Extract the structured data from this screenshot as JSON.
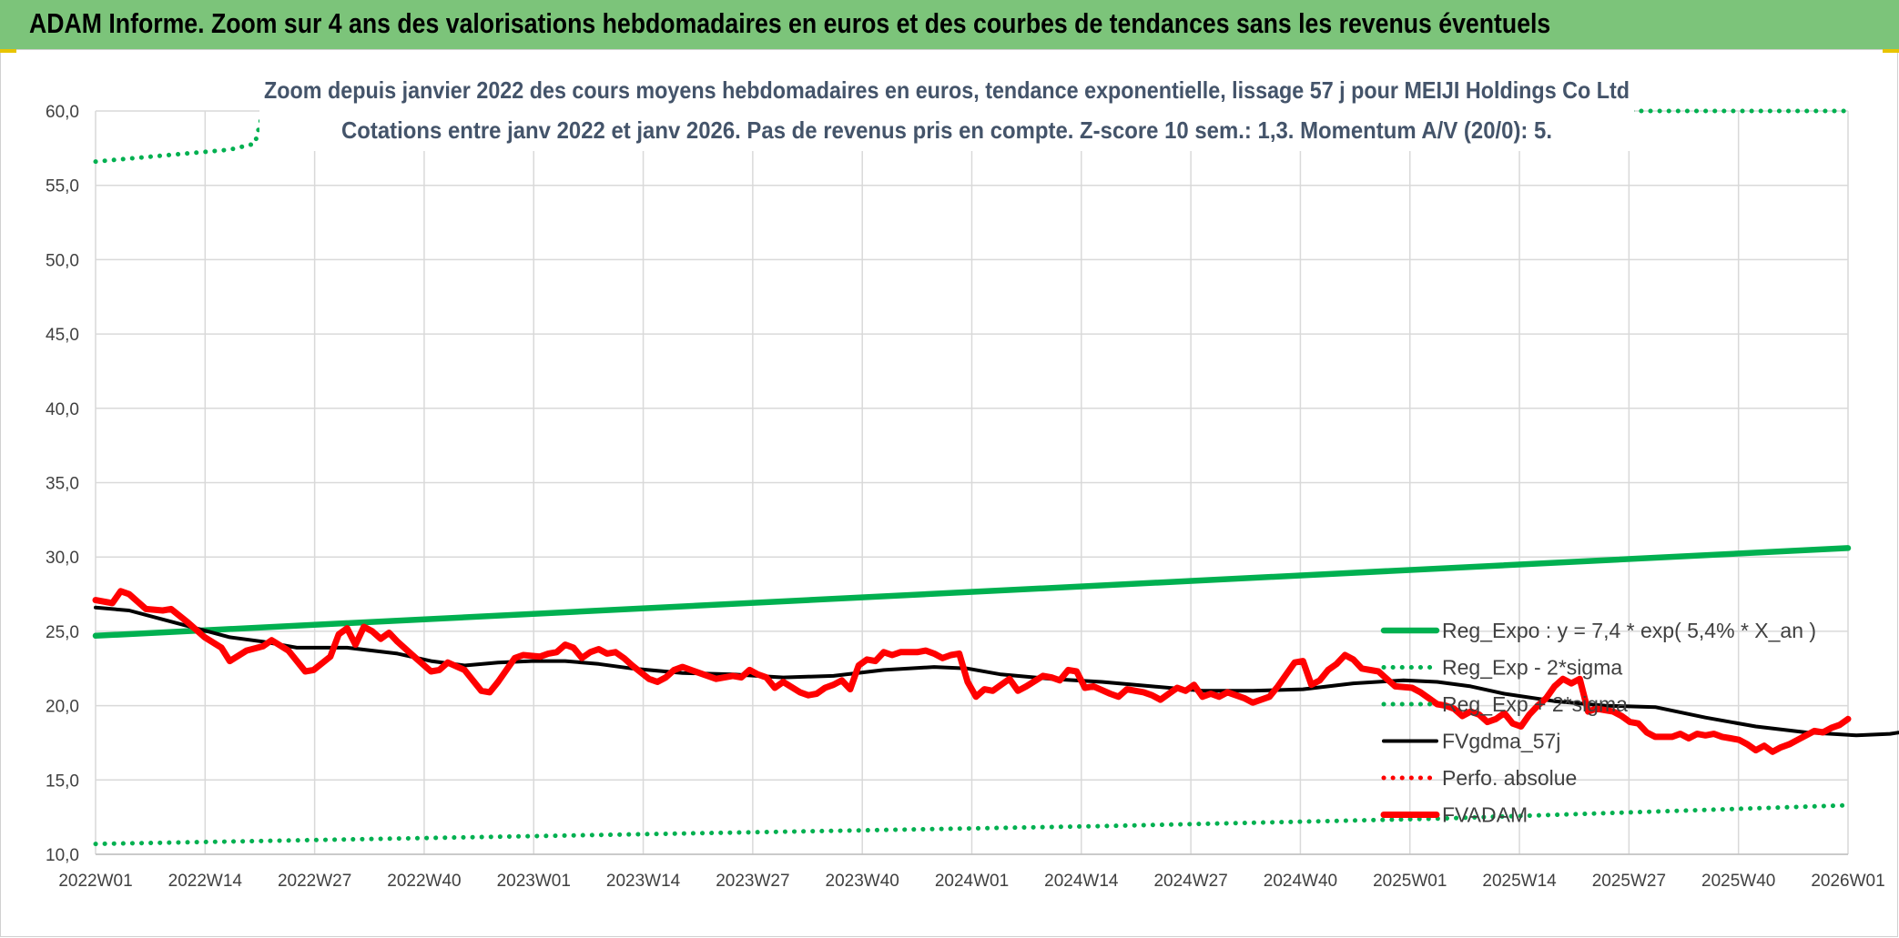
{
  "banner": {
    "title": "ADAM Informe. Zoom sur 4 ans des valorisations hebdomadaires en euros et des courbes de tendances sans les revenus éventuels"
  },
  "colors": {
    "banner": "#7cc47a",
    "reg_expo": "#00b050",
    "fvgdma": "#000000",
    "fvadam": "#ff0000",
    "perfo": "#ff0000",
    "subtitle": "#44546a"
  },
  "chart_data": {
    "type": "line",
    "title": "Zoom depuis janvier 2022 des cours moyens hebdomadaires en euros, tendance exponentielle, lissage 57 j pour MEIJI Holdings Co Ltd",
    "subtitle": "Cotations entre janv 2022 et janv 2026. Pas de revenus pris en compte. Z-score 10 sem.: 1,3. Momentum A/V (20/0): 5.",
    "xlabel": "",
    "ylabel": "",
    "ylim": [
      10,
      60
    ],
    "yticks": [
      "10,0",
      "15,0",
      "20,0",
      "25,0",
      "30,0",
      "35,0",
      "40,0",
      "45,0",
      "50,0",
      "55,0",
      "60,0"
    ],
    "xticks": [
      "2022W01",
      "2022W14",
      "2022W27",
      "2022W40",
      "2023W01",
      "2023W14",
      "2023W27",
      "2023W40",
      "2024W01",
      "2024W14",
      "2024W27",
      "2024W40",
      "2025W01",
      "2025W14",
      "2025W27",
      "2025W40",
      "2026W01"
    ],
    "grid": true,
    "legend_position": "right",
    "series": [
      {
        "name": "Reg_Expo : y = 7,4 * exp( 5,4% *  X_an )",
        "style": "solid-thick",
        "color": "#00b050",
        "points": [
          [
            0,
            24.7
          ],
          [
            209,
            30.6
          ]
        ]
      },
      {
        "name": "Reg_Exp - 2*sigma",
        "style": "dotted",
        "color": "#00b050",
        "points": [
          [
            0,
            10.7
          ],
          [
            40,
            11.1
          ],
          [
            80,
            11.5
          ],
          [
            120,
            11.9
          ],
          [
            160,
            12.4
          ],
          [
            209,
            13.3
          ]
        ]
      },
      {
        "name": "Reg_Exp + 2*sigma",
        "style": "dotted",
        "color": "#00b050",
        "points": [
          [
            0,
            56.6
          ],
          [
            8,
            57.0
          ],
          [
            16,
            57.4
          ],
          [
            19,
            57.8
          ],
          [
            20,
            60.0
          ],
          [
            209,
            60.0
          ]
        ]
      },
      {
        "name": "FVgdma_57j",
        "style": "solid",
        "color": "#000000",
        "points": [
          [
            0,
            26.6
          ],
          [
            4,
            26.4
          ],
          [
            8,
            25.8
          ],
          [
            12,
            25.2
          ],
          [
            16,
            24.6
          ],
          [
            20,
            24.3
          ],
          [
            24,
            23.9
          ],
          [
            30,
            23.9
          ],
          [
            36,
            23.5
          ],
          [
            40,
            23.0
          ],
          [
            44,
            22.7
          ],
          [
            48,
            22.9
          ],
          [
            52,
            23.0
          ],
          [
            56,
            23.0
          ],
          [
            60,
            22.8
          ],
          [
            64,
            22.5
          ],
          [
            70,
            22.2
          ],
          [
            76,
            22.1
          ],
          [
            82,
            21.9
          ],
          [
            88,
            22.0
          ],
          [
            94,
            22.4
          ],
          [
            100,
            22.6
          ],
          [
            104,
            22.5
          ],
          [
            108,
            22.1
          ],
          [
            114,
            21.8
          ],
          [
            120,
            21.6
          ],
          [
            126,
            21.3
          ],
          [
            132,
            21.0
          ],
          [
            138,
            21.0
          ],
          [
            144,
            21.1
          ],
          [
            150,
            21.5
          ],
          [
            156,
            21.7
          ],
          [
            160,
            21.6
          ],
          [
            164,
            21.3
          ],
          [
            168,
            20.8
          ],
          [
            174,
            20.3
          ],
          [
            180,
            20.0
          ],
          [
            186,
            19.9
          ],
          [
            192,
            19.2
          ],
          [
            198,
            18.6
          ],
          [
            204,
            18.2
          ],
          [
            210,
            18.0
          ],
          [
            214,
            18.1
          ],
          [
            220,
            18.6
          ]
        ]
      },
      {
        "name": "Perfo. absolue",
        "style": "dotted",
        "color": "#ff0000",
        "points": []
      },
      {
        "name": "FVADAM",
        "style": "solid-thick",
        "color": "#ff0000",
        "points": [
          [
            0,
            27.1
          ],
          [
            2,
            26.9
          ],
          [
            3,
            27.7
          ],
          [
            4,
            27.5
          ],
          [
            6,
            26.5
          ],
          [
            8,
            26.4
          ],
          [
            9,
            26.5
          ],
          [
            11,
            25.6
          ],
          [
            13,
            24.6
          ],
          [
            15,
            23.9
          ],
          [
            16,
            23.0
          ],
          [
            18,
            23.7
          ],
          [
            20,
            24.0
          ],
          [
            21,
            24.4
          ],
          [
            23,
            23.7
          ],
          [
            25,
            22.3
          ],
          [
            26,
            22.4
          ],
          [
            28,
            23.3
          ],
          [
            29,
            24.8
          ],
          [
            30,
            25.2
          ],
          [
            31,
            24.1
          ],
          [
            32,
            25.3
          ],
          [
            33,
            25.0
          ],
          [
            34,
            24.5
          ],
          [
            35,
            24.9
          ],
          [
            36,
            24.3
          ],
          [
            38,
            23.3
          ],
          [
            40,
            22.3
          ],
          [
            41,
            22.4
          ],
          [
            42,
            22.9
          ],
          [
            44,
            22.4
          ],
          [
            46,
            21.0
          ],
          [
            47,
            20.9
          ],
          [
            48,
            21.6
          ],
          [
            50,
            23.2
          ],
          [
            51,
            23.4
          ],
          [
            53,
            23.3
          ],
          [
            54,
            23.5
          ],
          [
            55,
            23.6
          ],
          [
            56,
            24.1
          ],
          [
            57,
            23.9
          ],
          [
            58,
            23.2
          ],
          [
            59,
            23.6
          ],
          [
            60,
            23.8
          ],
          [
            61,
            23.5
          ],
          [
            62,
            23.6
          ],
          [
            63,
            23.2
          ],
          [
            64,
            22.7
          ],
          [
            66,
            21.8
          ],
          [
            67,
            21.6
          ],
          [
            68,
            21.9
          ],
          [
            69,
            22.4
          ],
          [
            70,
            22.6
          ],
          [
            72,
            22.2
          ],
          [
            74,
            21.8
          ],
          [
            76,
            22.0
          ],
          [
            77,
            21.9
          ],
          [
            78,
            22.4
          ],
          [
            79,
            22.1
          ],
          [
            80,
            21.9
          ],
          [
            81,
            21.2
          ],
          [
            82,
            21.6
          ],
          [
            84,
            20.9
          ],
          [
            85,
            20.7
          ],
          [
            86,
            20.8
          ],
          [
            87,
            21.2
          ],
          [
            88,
            21.4
          ],
          [
            89,
            21.7
          ],
          [
            90,
            21.1
          ],
          [
            91,
            22.7
          ],
          [
            92,
            23.1
          ],
          [
            93,
            23.0
          ],
          [
            94,
            23.6
          ],
          [
            95,
            23.4
          ],
          [
            96,
            23.6
          ],
          [
            98,
            23.6
          ],
          [
            99,
            23.7
          ],
          [
            100,
            23.5
          ],
          [
            101,
            23.2
          ],
          [
            102,
            23.4
          ],
          [
            103,
            23.5
          ],
          [
            104,
            21.6
          ],
          [
            105,
            20.6
          ],
          [
            106,
            21.1
          ],
          [
            107,
            21.0
          ],
          [
            108,
            21.4
          ],
          [
            109,
            21.8
          ],
          [
            110,
            21.0
          ],
          [
            111,
            21.3
          ],
          [
            113,
            22.0
          ],
          [
            114,
            21.9
          ],
          [
            115,
            21.7
          ],
          [
            116,
            22.4
          ],
          [
            117,
            22.3
          ],
          [
            118,
            21.2
          ],
          [
            119,
            21.3
          ],
          [
            121,
            20.8
          ],
          [
            122,
            20.6
          ],
          [
            123,
            21.1
          ],
          [
            124,
            21.0
          ],
          [
            125,
            20.9
          ],
          [
            126,
            20.7
          ],
          [
            127,
            20.4
          ],
          [
            128,
            20.8
          ],
          [
            129,
            21.2
          ],
          [
            130,
            21.0
          ],
          [
            131,
            21.4
          ],
          [
            132,
            20.6
          ],
          [
            133,
            20.8
          ],
          [
            134,
            20.6
          ],
          [
            135,
            20.9
          ],
          [
            136,
            20.7
          ],
          [
            137,
            20.5
          ],
          [
            138,
            20.2
          ],
          [
            139,
            20.4
          ],
          [
            140,
            20.6
          ],
          [
            141,
            21.3
          ],
          [
            142,
            22.1
          ],
          [
            143,
            22.9
          ],
          [
            144,
            23.0
          ],
          [
            145,
            21.4
          ],
          [
            146,
            21.7
          ],
          [
            147,
            22.4
          ],
          [
            148,
            22.8
          ],
          [
            149,
            23.4
          ],
          [
            150,
            23.1
          ],
          [
            151,
            22.5
          ],
          [
            153,
            22.3
          ],
          [
            154,
            21.8
          ],
          [
            155,
            21.3
          ],
          [
            157,
            21.2
          ],
          [
            158,
            20.9
          ],
          [
            159,
            20.5
          ],
          [
            160,
            20.1
          ],
          [
            161,
            20.0
          ],
          [
            162,
            19.8
          ],
          [
            163,
            19.3
          ],
          [
            164,
            19.6
          ],
          [
            165,
            19.4
          ],
          [
            166,
            18.9
          ],
          [
            167,
            19.1
          ],
          [
            168,
            19.5
          ],
          [
            169,
            18.8
          ],
          [
            170,
            18.6
          ],
          [
            171,
            19.4
          ],
          [
            172,
            20.0
          ],
          [
            173,
            20.5
          ],
          [
            174,
            21.3
          ],
          [
            175,
            21.8
          ],
          [
            176,
            21.5
          ],
          [
            177,
            21.8
          ],
          [
            178,
            19.6
          ],
          [
            179,
            19.8
          ],
          [
            180,
            19.7
          ],
          [
            181,
            19.6
          ],
          [
            182,
            19.3
          ],
          [
            183,
            18.9
          ],
          [
            184,
            18.8
          ],
          [
            185,
            18.2
          ],
          [
            186,
            17.9
          ],
          [
            188,
            17.9
          ],
          [
            189,
            18.1
          ],
          [
            190,
            17.8
          ],
          [
            191,
            18.1
          ],
          [
            192,
            18.0
          ],
          [
            193,
            18.1
          ],
          [
            194,
            17.9
          ],
          [
            195,
            17.8
          ],
          [
            196,
            17.7
          ],
          [
            197,
            17.4
          ],
          [
            198,
            17.0
          ],
          [
            199,
            17.3
          ],
          [
            200,
            16.9
          ],
          [
            201,
            17.2
          ],
          [
            202,
            17.4
          ],
          [
            203,
            17.7
          ],
          [
            204,
            18.0
          ],
          [
            205,
            18.3
          ],
          [
            206,
            18.2
          ],
          [
            207,
            18.5
          ],
          [
            208,
            18.7
          ],
          [
            209,
            19.1
          ]
        ]
      }
    ]
  }
}
